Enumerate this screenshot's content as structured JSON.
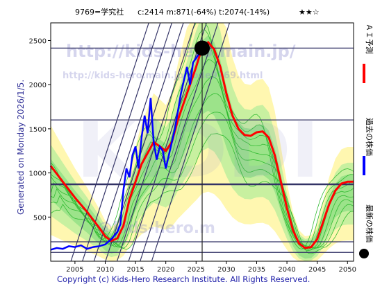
{
  "header": {
    "code_name": "9769=学究社",
    "stats": "c:2414  m:871(-64%)  t:2074(-14%)",
    "stars": "★★☆"
  },
  "side_label": "Generated on Monday 2026/1/5.",
  "footer": "Copyright (c) Kids-Hero Research Institute. All Rights Reserved.",
  "watermark": {
    "url": "http://kids-hero.main.jp/",
    "page": "http://kids-hero.main.jp/code9769.html",
    "big": "KIDDI",
    "mid": "@kids-hero.m"
  },
  "legend": {
    "ai_label": "ＡＩ予測",
    "past_label": "過去の株価",
    "latest_label": "最新の株価"
  },
  "colors": {
    "price": "#0000ff",
    "ai": "#ff0000",
    "band_outer": "#fff7b0",
    "band_mid": "#c8f0a0",
    "band_inner": "#9ce38a",
    "green_line": "#33bb33",
    "channel": "#333366",
    "hline": "#333366"
  },
  "chart_data": {
    "type": "line",
    "title": "9769=学究社",
    "xlabel": "",
    "ylabel": "",
    "xlim": [
      2001,
      2051
    ],
    "ylim": [
      0,
      2700
    ],
    "x_ticks": [
      "2005",
      "2010",
      "2015",
      "2020",
      "2025",
      "2030",
      "2035",
      "2040",
      "2045",
      "2050"
    ],
    "y_ticks": [
      "500",
      "1000",
      "1500",
      "2000",
      "2500"
    ],
    "grid": false,
    "legend_position": "right-outside",
    "current_price": 2414,
    "latest_point": {
      "x": 2026.0,
      "y": 2414
    },
    "horizontal_levels": [
      2414,
      1600,
      871,
      220,
      100
    ],
    "vertical_marker_year": 2026.0,
    "series": [
      {
        "name": "過去の株価",
        "x": [
          2001.0,
          2002.0,
          2003.0,
          2004.0,
          2005.0,
          2006.0,
          2007.0,
          2008.0,
          2009.0,
          2010.0,
          2011.0,
          2012.0,
          2012.5,
          2013.0,
          2013.5,
          2014.0,
          2014.5,
          2015.0,
          2015.5,
          2016.0,
          2016.5,
          2017.0,
          2017.5,
          2018.0,
          2018.5,
          2019.0,
          2019.5,
          2020.0,
          2020.5,
          2021.0,
          2021.5,
          2022.0,
          2022.5,
          2023.0,
          2023.5,
          2024.0,
          2024.5,
          2025.0,
          2025.5,
          2026.0
        ],
        "y": [
          130,
          150,
          140,
          170,
          160,
          180,
          140,
          160,
          170,
          190,
          250,
          330,
          420,
          800,
          1050,
          950,
          1200,
          1300,
          1050,
          1400,
          1650,
          1450,
          1850,
          1350,
          1150,
          1300,
          1250,
          1050,
          1200,
          1350,
          1500,
          1700,
          1900,
          2050,
          2200,
          2000,
          2250,
          2300,
          2350,
          2414
        ]
      },
      {
        "name": "ＡＩ予測",
        "x": [
          2001.0,
          2003.0,
          2005.0,
          2007.0,
          2009.0,
          2010.0,
          2011.0,
          2012.0,
          2013.0,
          2014.0,
          2016.0,
          2018.0,
          2020.0,
          2021.0,
          2022.0,
          2023.0,
          2024.0,
          2025.0,
          2026.0,
          2027.0,
          2028.0,
          2029.0,
          2030.0,
          2031.0,
          2032.0,
          2033.0,
          2034.0,
          2035.0,
          2036.0,
          2037.0,
          2038.0,
          2039.0,
          2040.0,
          2041.0,
          2042.0,
          2043.0,
          2044.0,
          2045.0,
          2046.0,
          2047.0,
          2048.0,
          2049.0,
          2050.0,
          2051.0
        ],
        "y": [
          1080,
          900,
          720,
          560,
          380,
          280,
          230,
          260,
          400,
          700,
          1100,
          1350,
          1250,
          1350,
          1600,
          1800,
          2000,
          2200,
          2420,
          2480,
          2400,
          2200,
          1900,
          1650,
          1500,
          1430,
          1420,
          1460,
          1470,
          1400,
          1200,
          900,
          600,
          350,
          200,
          150,
          160,
          250,
          450,
          650,
          800,
          880,
          900,
          900
        ]
      }
    ]
  }
}
